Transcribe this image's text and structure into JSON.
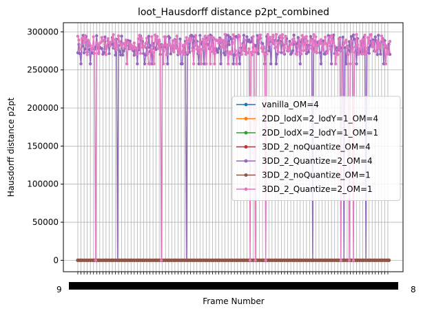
{
  "chart_data": {
    "type": "line",
    "title": "loot_Hausdorff distance p2pt_combined",
    "xlabel": "Frame Number",
    "ylabel": "Hausdorff distance p2pt",
    "x_range": [
      1000,
      1299
    ],
    "ylim": [
      -15000,
      312000
    ],
    "yticks": [
      0,
      50000,
      100000,
      150000,
      200000,
      250000,
      300000
    ],
    "ytick_labels": [
      "0",
      "50000",
      "100000",
      "150000",
      "200000",
      "250000",
      "300000"
    ],
    "xtick_labels_visible": [
      "9",
      "8"
    ],
    "grid": true,
    "legend_position": "center-right",
    "series": [
      {
        "name": "vanilla_OM=4",
        "color": "#1f77b4",
        "pattern": "zero",
        "value": 0
      },
      {
        "name": "2DD_lodX=2_lodY=1_OM=4",
        "color": "#ff7f0e",
        "pattern": "zero",
        "value": 0
      },
      {
        "name": "2DD_lodX=2_lodY=1_OM=1",
        "color": "#2ca02c",
        "pattern": "zero",
        "value": 0
      },
      {
        "name": "3DD_2_noQuantize_OM=4",
        "color": "#d62728",
        "pattern": "zero",
        "value": 0
      },
      {
        "name": "3DD_2_Quantize=2_OM=4",
        "color": "#9467bd",
        "pattern": "high",
        "range": [
          258000,
          296000
        ],
        "dropouts": [
          1038,
          1104,
          1225,
          1255,
          1276
        ]
      },
      {
        "name": "3DD_2_noQuantize_OM=1",
        "color": "#8c564b",
        "pattern": "zero",
        "value": 0
      },
      {
        "name": "3DD_2_Quantize=2_OM=1",
        "color": "#e377c2",
        "pattern": "high",
        "range": [
          258000,
          297000
        ],
        "dropouts": [
          1017,
          1080,
          1165,
          1170,
          1180,
          1252,
          1260,
          1264
        ]
      }
    ]
  }
}
